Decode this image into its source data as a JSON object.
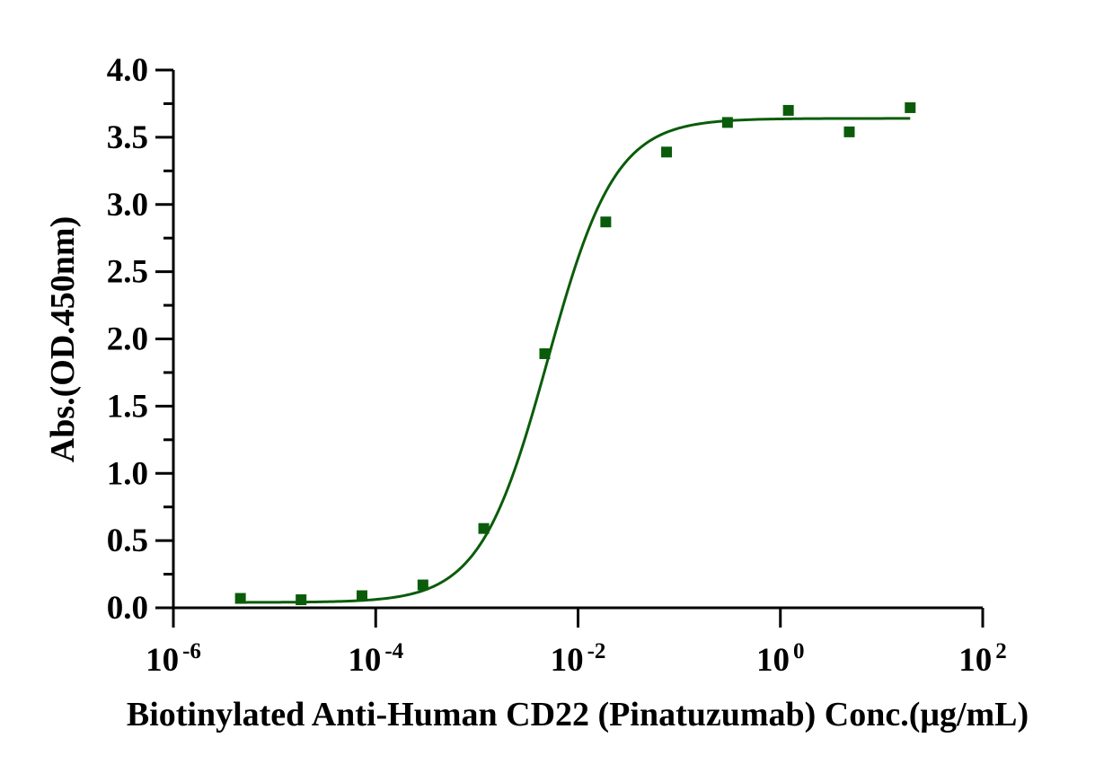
{
  "chart_data": {
    "type": "scatter",
    "title": "",
    "xlabel": "Biotinylated Anti-Human CD22 (Pinatuzumab) Conc.(μg/mL)",
    "ylabel": "Abs.(OD.450nm)",
    "xscale": "log",
    "xlim": [
      1e-06,
      100
    ],
    "ylim": [
      0,
      4
    ],
    "x_ticks": [
      {
        "base": "10",
        "exp": "-6",
        "value": 1e-06
      },
      {
        "base": "10",
        "exp": "-4",
        "value": 0.0001
      },
      {
        "base": "10",
        "exp": "-2",
        "value": 0.01
      },
      {
        "base": "10",
        "exp": "0",
        "value": 1
      },
      {
        "base": "10",
        "exp": "2",
        "value": 100
      }
    ],
    "y_ticks": [
      "0.0",
      "0.5",
      "1.0",
      "1.5",
      "2.0",
      "2.5",
      "3.0",
      "3.5",
      "4.0"
    ],
    "color": "#0a5c0a",
    "series": [
      {
        "name": "Abs.(OD.450nm)",
        "marker": "square",
        "x": [
          4.6e-06,
          1.83e-05,
          7.32e-05,
          0.000293,
          0.00117,
          0.00469,
          0.0188,
          0.075,
          0.3,
          1.2,
          4.8,
          19.2
        ],
        "y": [
          0.07,
          0.06,
          0.09,
          0.17,
          0.59,
          1.89,
          2.87,
          3.39,
          3.61,
          3.7,
          3.54,
          3.72
        ]
      }
    ],
    "fit": {
      "model": "4PL",
      "bottom": 0.04,
      "top": 3.64,
      "ec50": 0.005,
      "hill": 1.3,
      "x_range": [
        4.6e-06,
        19.2
      ]
    }
  }
}
